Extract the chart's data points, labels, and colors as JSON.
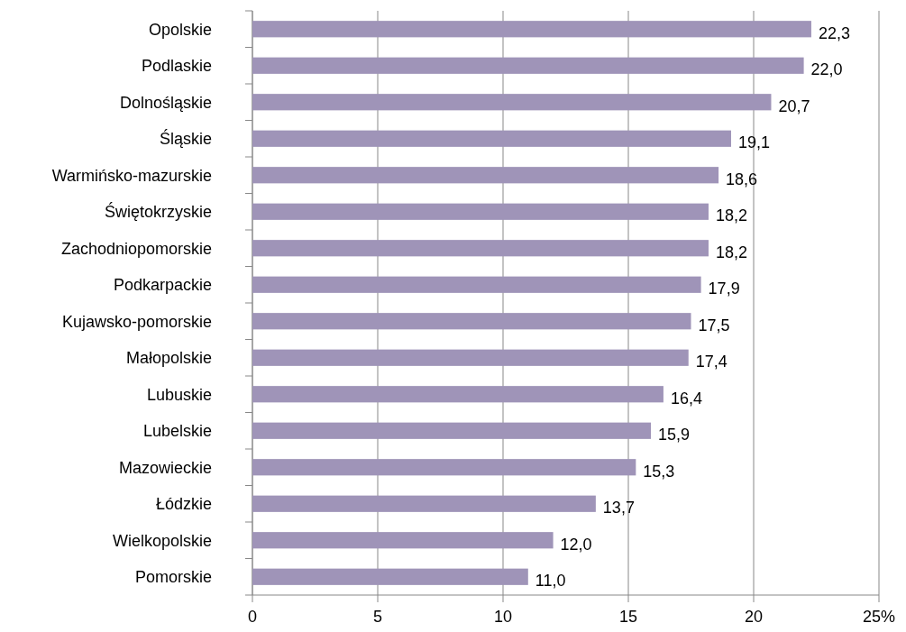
{
  "chart_data": {
    "type": "bar",
    "orientation": "horizontal",
    "categories": [
      "Opolskie",
      "Podlaskie",
      "Dolnośląskie",
      "Śląskie",
      "Warmińsko-mazurskie",
      "Świętokrzyskie",
      "Zachodniopomorskie",
      "Podkarpackie",
      "Kujawsko-pomorskie",
      "Małopolskie",
      "Lubuskie",
      "Lubelskie",
      "Mazowieckie",
      "Łódzkie",
      "Wielkopolskie",
      "Pomorskie"
    ],
    "values": [
      22.3,
      22.0,
      20.7,
      19.1,
      18.6,
      18.2,
      18.2,
      17.9,
      17.5,
      17.4,
      16.4,
      15.9,
      15.3,
      13.7,
      12.0,
      11.0
    ],
    "value_labels": [
      "22,3",
      "22,0",
      "20,7",
      "19,1",
      "18,6",
      "18,2",
      "18,2",
      "17,9",
      "17,5",
      "17,4",
      "16,4",
      "15,9",
      "15,3",
      "13,7",
      "12,0",
      "11,0"
    ],
    "color": "#9f94b8",
    "xlim": [
      0,
      25
    ],
    "xticks": [
      0,
      5,
      10,
      15,
      20,
      {
        "value": 25,
        "label": "25%"
      }
    ],
    "grid": "x"
  }
}
